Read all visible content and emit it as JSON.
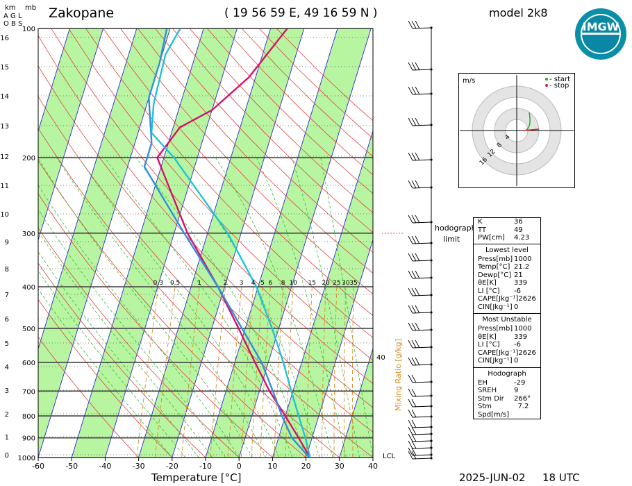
{
  "header": {
    "station": "Zakopane",
    "coords": "( 19 56 59  E, 49 16 59  N )",
    "model": "model 2k8",
    "date": "2025-JUN-02",
    "time": "18 UTC",
    "logo_text": "IMGW"
  },
  "left_axis": {
    "km_label": "km",
    "mb_label": "mb",
    "agl_label": "A G L",
    "obs_label": "O B S",
    "lcl_label": "LCL"
  },
  "hodograph_link": {
    "line1": "hodograph",
    "line2": "limit"
  },
  "mixing_ratio_label": "Mixing Ratio [g/kg]",
  "mixing_ratio_40": "40",
  "hodograph_panel": {
    "unit": "m/s",
    "legend_start": "- start",
    "legend_stop": "- stop",
    "ring_labels": [
      "4",
      "8",
      "12",
      "16"
    ]
  },
  "indices": {
    "rows": [
      {
        "label": "K",
        "value": "36"
      },
      {
        "label": "TT",
        "value": "49"
      },
      {
        "label": "PW[cm]",
        "value": "4.23"
      }
    ]
  },
  "lowest_level": {
    "title": "Lowest level",
    "rows": [
      {
        "label": "Press[mb]",
        "value": "1000"
      },
      {
        "label": "Temp[°C]",
        "value": "21.2"
      },
      {
        "label": "Dewp[°C]",
        "value": "21"
      },
      {
        "label": "θE[K]",
        "value": "339"
      },
      {
        "label": "LI [°C]",
        "value": "-6"
      },
      {
        "label": "CAPE[Jkg⁻¹]",
        "value": "2626"
      },
      {
        "label": "CIN[Jkg⁻¹]",
        "value": "0"
      }
    ]
  },
  "most_unstable": {
    "title": "Most Unstable",
    "rows": [
      {
        "label": "Press[mb]",
        "value": "1000"
      },
      {
        "label": "θE[K]",
        "value": "339"
      },
      {
        "label": "LI [°C]",
        "value": "-6"
      },
      {
        "label": "CAPE[Jkg⁻¹]",
        "value": "2626"
      },
      {
        "label": "CIN[Jkg⁻¹]",
        "value": "0"
      }
    ]
  },
  "hodograph_stats": {
    "title": "Hodograph",
    "rows": [
      {
        "label": "EH",
        "value": "-29"
      },
      {
        "label": "SREH",
        "value": "9"
      },
      {
        "label": "Stm Dir",
        "value": "266°"
      },
      {
        "label": "Stm Spd[m/s]",
        "value": "7.2"
      }
    ]
  },
  "chart_data": {
    "type": "line",
    "title": "Zakopane",
    "xlabel": "Temperature [°C]",
    "ylabel": "mb",
    "xlim": [
      -60,
      40
    ],
    "ylim": [
      1000,
      100
    ],
    "x_ticks": [
      -60,
      -50,
      -40,
      -30,
      -20,
      -10,
      0,
      10,
      20,
      30,
      40
    ],
    "pressure_levels": [
      100,
      200,
      300,
      400,
      500,
      600,
      700,
      800,
      900,
      1000
    ],
    "height_ticks_km": [
      0,
      1,
      2,
      3,
      4,
      5,
      6,
      7,
      8,
      9,
      10,
      11,
      12,
      13,
      14,
      15,
      16
    ],
    "mixing_ratio_labels": [
      "0.3",
      "0.5",
      "1",
      "2",
      "3",
      "4",
      "5",
      "6",
      "8",
      "10",
      "15",
      "20",
      "25",
      "30",
      "35"
    ],
    "colors": {
      "temperature": "#d6106a",
      "dewpoint": "#2e8fe0",
      "parcel": "#1ec3d6",
      "isotherm_band": "#b8f5a0",
      "isobar": "#444444",
      "isotherm_line": "#3a3ad0",
      "dry_adiabat": "#e04040",
      "moist_adiabat": "#33bb33",
      "mixing_ratio": "#e08a20",
      "hodo_start": "#22aa22",
      "hodo_stop": "#dd2222"
    },
    "series": [
      {
        "name": "Temperature",
        "points": [
          [
            21.2,
            1000
          ],
          [
            16,
            900
          ],
          [
            10,
            800
          ],
          [
            3,
            700
          ],
          [
            -4,
            600
          ],
          [
            -12,
            500
          ],
          [
            -22,
            400
          ],
          [
            -36,
            300
          ],
          [
            -52,
            200
          ],
          [
            -48,
            170
          ],
          [
            -40,
            155
          ],
          [
            -32,
            130
          ],
          [
            -25,
            100
          ]
        ]
      },
      {
        "name": "Dewpoint",
        "points": [
          [
            21,
            1000
          ],
          [
            14,
            900
          ],
          [
            9,
            800
          ],
          [
            4,
            700
          ],
          [
            -2,
            600
          ],
          [
            -11,
            500
          ],
          [
            -22,
            400
          ],
          [
            -37,
            300
          ],
          [
            -55,
            210
          ],
          [
            -55,
            185
          ],
          [
            -58,
            160
          ],
          [
            -60,
            145
          ],
          [
            -60,
            120
          ],
          [
            -61,
            100
          ]
        ]
      },
      {
        "name": "Parcel",
        "points": [
          [
            21.2,
            1000
          ],
          [
            18,
            900
          ],
          [
            14,
            800
          ],
          [
            9.5,
            700
          ],
          [
            4.5,
            600
          ],
          [
            -2,
            500
          ],
          [
            -10.5,
            400
          ],
          [
            -24,
            300
          ],
          [
            -47,
            200
          ],
          [
            -56,
            175
          ],
          [
            -58,
            150
          ],
          [
            -59,
            115
          ],
          [
            -57,
            100
          ]
        ]
      }
    ]
  }
}
